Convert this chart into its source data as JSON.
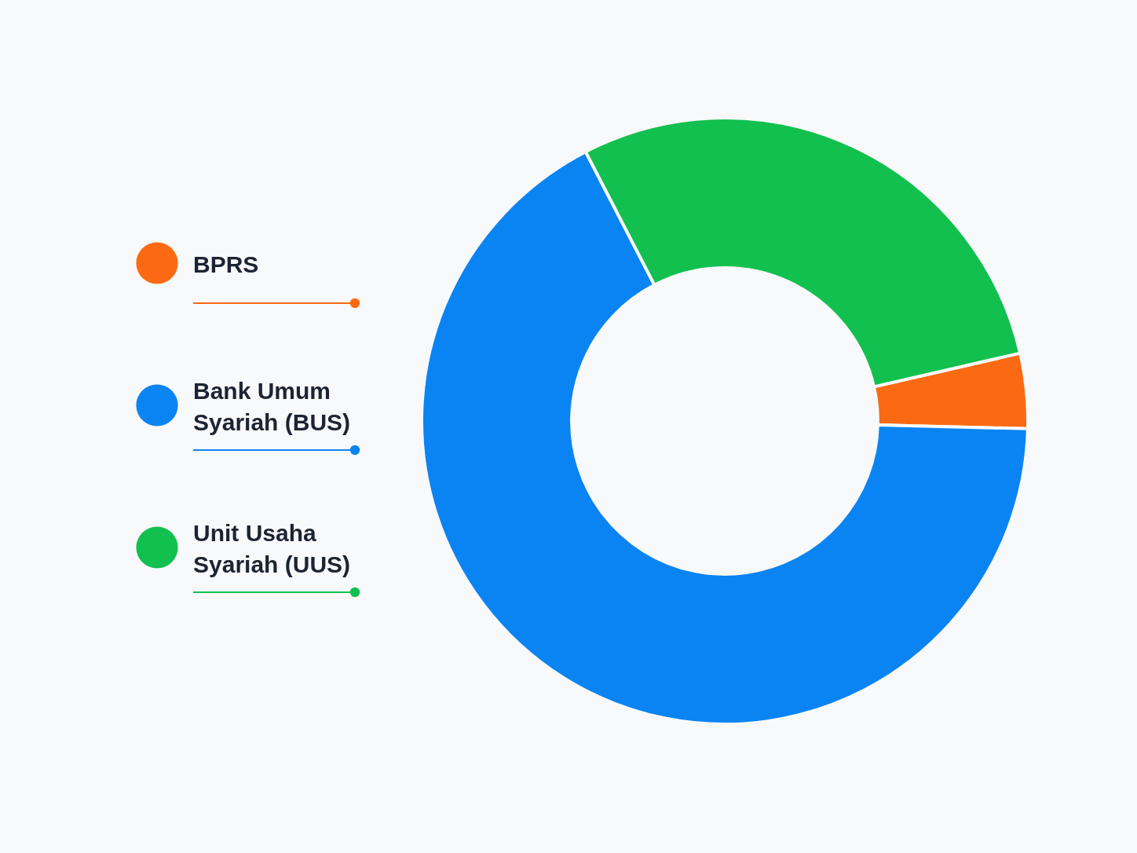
{
  "chart_data": {
    "type": "donut",
    "categories": [
      "BPRS",
      "Bank Umum Syariah (BUS)",
      "Unit Usaha Syariah (UUS)"
    ],
    "values": [
      4,
      67,
      29
    ],
    "colors": [
      "#fb6a12",
      "#0a84f2",
      "#12c04f"
    ],
    "legend": "left"
  }
}
